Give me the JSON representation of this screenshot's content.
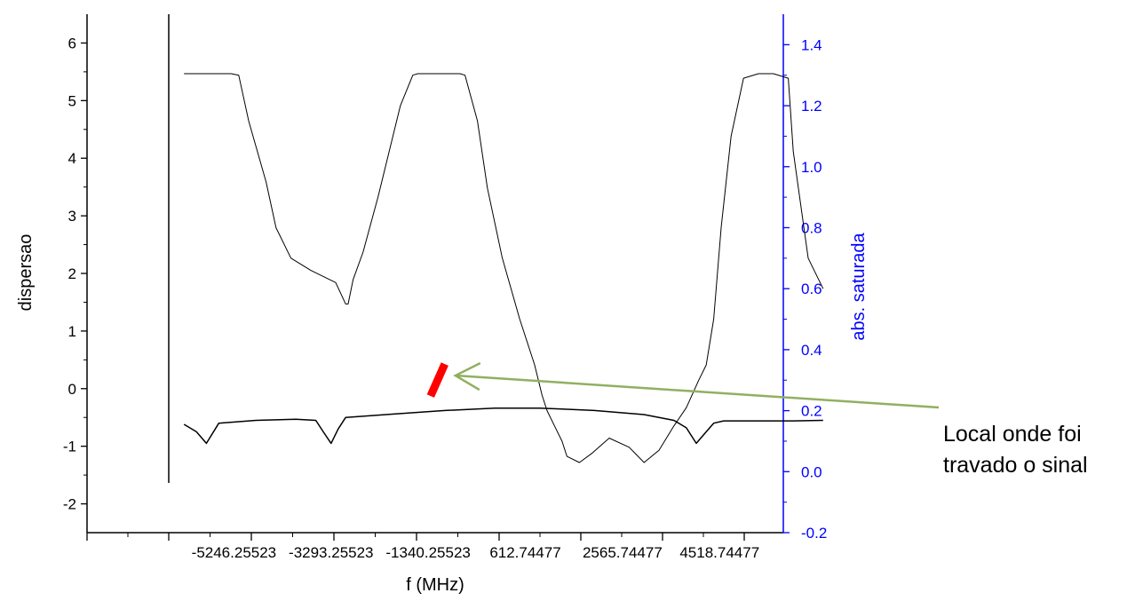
{
  "chart_data": {
    "type": "line",
    "title": "",
    "xlabel": "f (MHz)",
    "ylabel_left": "dispersao",
    "ylabel_right": "abs. saturada",
    "ylim_left": [
      -2.5,
      6.5
    ],
    "ylim_right": [
      -0.2,
      1.5
    ],
    "xlim": [
      -8200,
      5800
    ],
    "x_ticks": [
      -5246.25523,
      -3293.25523,
      -1340.25523,
      612.74477,
      2565.74477,
      4518.74477
    ],
    "x_tick_labels": [
      "-5246.25523",
      "-3293.25523",
      "-1340.25523",
      "612.74477",
      "2565.74477",
      "4518.74477"
    ],
    "y_left_ticks": [
      -2,
      -1,
      0,
      1,
      2,
      3,
      4,
      5,
      6
    ],
    "y_left_tick_labels": [
      "-2",
      "-1",
      "0",
      "1",
      "2",
      "3",
      "4",
      "5",
      "6"
    ],
    "y_right_ticks": [
      -0.2,
      0.0,
      0.2,
      0.4,
      0.6,
      0.8,
      1.0,
      1.2,
      1.4
    ],
    "y_right_tick_labels": [
      "-0.2",
      "0.0",
      "0.2",
      "0.4",
      "0.6",
      "0.8",
      "1.0",
      "1.2",
      "1.4"
    ],
    "right_axis_color": "#0000ff",
    "series": [
      {
        "axis": "right",
        "x": [
          -6250,
          -5300,
          -5150,
          -4950,
          -4600,
          -4400,
          -4100,
          -3700,
          -3200,
          -3000,
          -2950,
          -2850,
          -2650,
          -2350,
          -1900,
          -1650,
          -1550,
          -1450,
          -1000,
          -850,
          -700,
          -600,
          -350,
          -150,
          150,
          500,
          700,
          800,
          950,
          1050,
          1200,
          1350,
          1450,
          1700,
          1950,
          2300,
          2700,
          3000,
          3300,
          3600,
          3850,
          4100,
          4250,
          4400,
          4550,
          4750,
          5000,
          5300,
          5600,
          5900,
          6000,
          6300,
          6600
        ],
        "y": [
          1.305,
          1.305,
          1.3,
          1.15,
          0.95,
          0.8,
          0.7,
          0.66,
          0.62,
          0.55,
          0.55,
          0.63,
          0.72,
          0.9,
          1.2,
          1.3,
          1.305,
          1.305,
          1.305,
          1.305,
          1.305,
          1.3,
          1.15,
          0.93,
          0.7,
          0.5,
          0.4,
          0.35,
          0.25,
          0.2,
          0.15,
          0.1,
          0.05,
          0.03,
          0.06,
          0.11,
          0.08,
          0.03,
          0.07,
          0.15,
          0.21,
          0.3,
          0.35,
          0.5,
          0.8,
          1.1,
          1.29,
          1.305,
          1.305,
          1.29,
          1.05,
          0.7,
          0.6
        ]
      },
      {
        "axis": "left",
        "x": [
          -6250,
          -6000,
          -5800,
          -5550,
          -4800,
          -4000,
          -3600,
          -3450,
          -3293,
          -3150,
          -3000,
          -2000,
          -1000,
          0,
          900,
          1500,
          2000,
          3000,
          3600,
          3850,
          4050,
          4250,
          4400,
          4600,
          5000,
          6000,
          6600
        ],
        "y": [
          -0.62,
          -0.75,
          -0.95,
          -0.6,
          -0.55,
          -0.53,
          -0.55,
          -0.75,
          -0.95,
          -0.7,
          -0.5,
          -0.44,
          -0.38,
          -0.34,
          -0.34,
          -0.36,
          -0.38,
          -0.45,
          -0.55,
          -0.68,
          -0.95,
          -0.75,
          -0.6,
          -0.56,
          -0.56,
          -0.56,
          -0.55
        ]
      }
    ],
    "annotation": {
      "text_line1": "Local onde foi",
      "text_line2": "travado o sinal",
      "marker_color": "#ff0000",
      "arrow_color": "#90b060",
      "marker_x": -1150,
      "marker_y_left": 0.15
    }
  }
}
